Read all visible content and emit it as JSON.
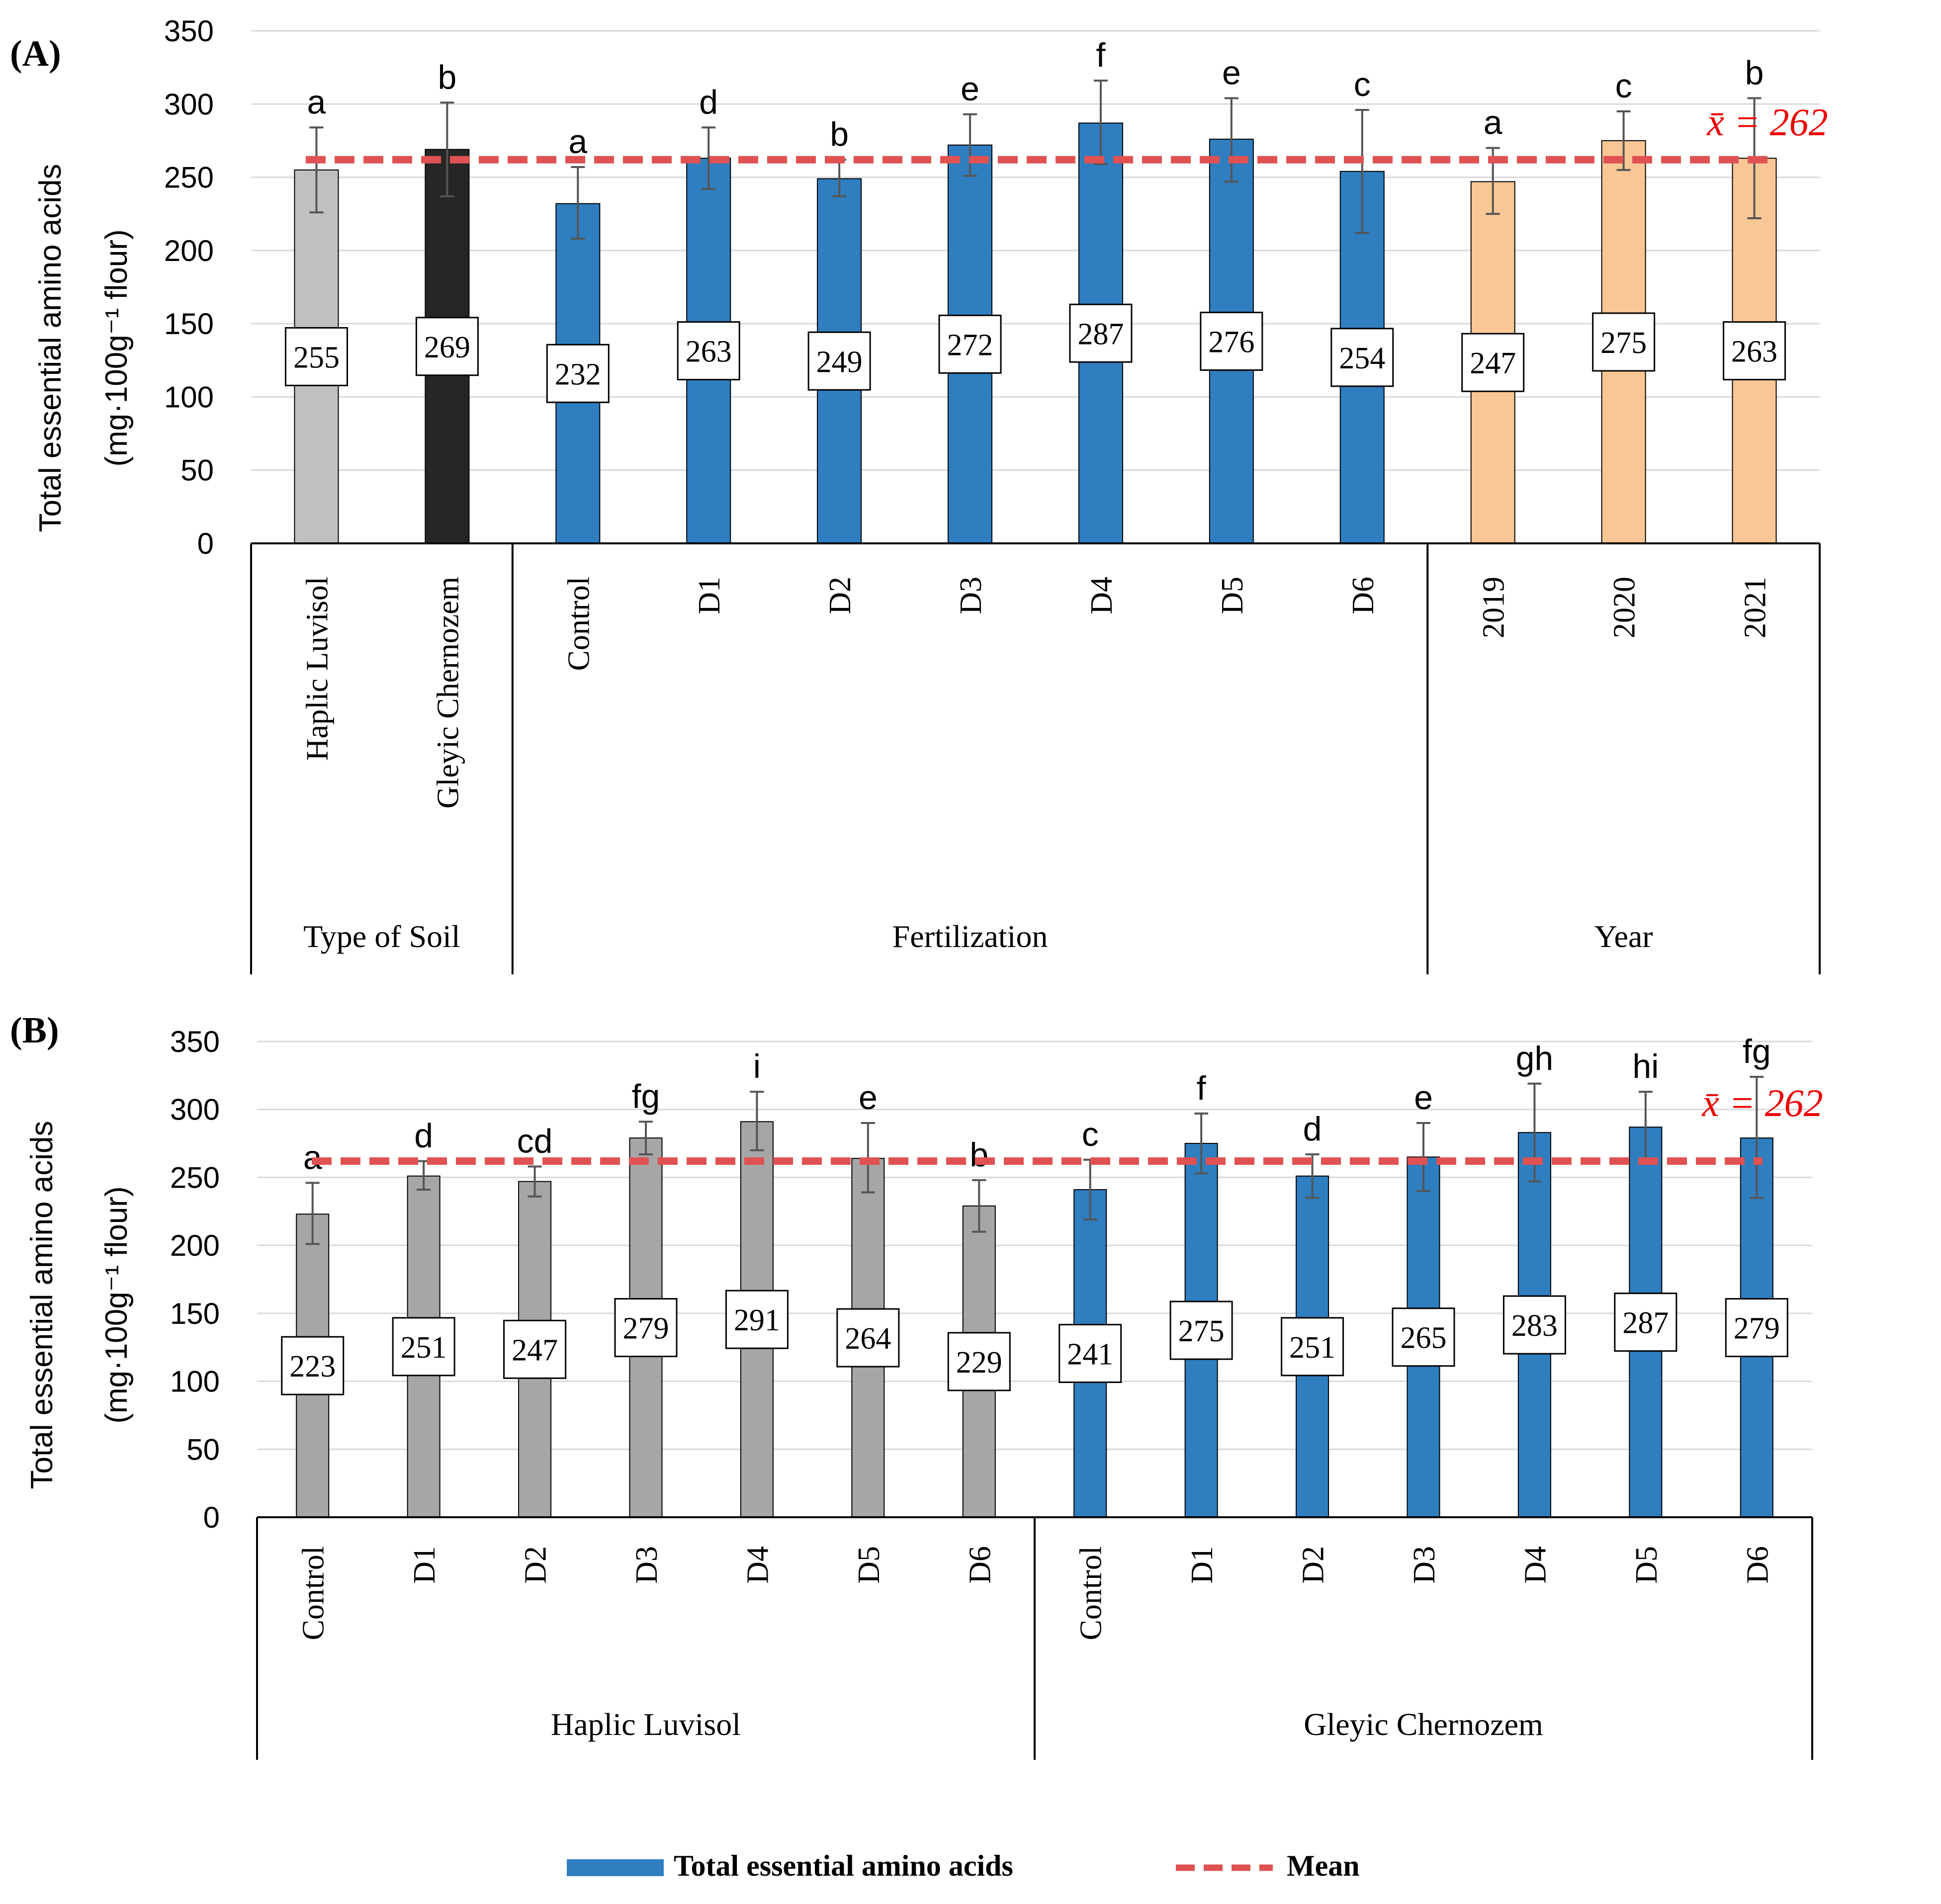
{
  "colors": {
    "grid": "#d9d9d9",
    "axis": "#000000",
    "error": "#555555",
    "mean": "#e05252",
    "mean_label": "#ee0000",
    "soil_luvisol": "#c0c0c0",
    "soil_chernozem": "#262626",
    "blue": "#2f7ec0",
    "orange": "#f9c795",
    "gray_b": "#a6a6a6"
  },
  "chart_data": [
    {
      "panel_label": "(A)",
      "type": "bar",
      "ylabel_line1": "Total essential amino acids",
      "ylabel_line2": "(mg·100g⁻¹ flour)",
      "ylim": [
        0,
        350
      ],
      "yticks": [
        "0",
        "50",
        "100",
        "150",
        "200",
        "250",
        "300",
        "350"
      ],
      "grid": true,
      "mean": 262,
      "mean_label": "x̄ = 262",
      "groups": [
        {
          "label": "Type of Soil",
          "count": 2
        },
        {
          "label": "Fertilization",
          "count": 7
        },
        {
          "label": "Year",
          "count": 3
        }
      ],
      "bars": [
        {
          "category": "Haplic Luvisol",
          "value": 255,
          "value_label": "255",
          "error_low": 226,
          "error_high": 284,
          "letter": "a",
          "color": "soil_luvisol"
        },
        {
          "category": "Gleyic Chernozem",
          "value": 269,
          "value_label": "269",
          "error_low": 237,
          "error_high": 301,
          "letter": "b",
          "color": "soil_chernozem"
        },
        {
          "category": "Control",
          "value": 232,
          "value_label": "232",
          "error_low": 208,
          "error_high": 257,
          "letter": "a",
          "color": "blue"
        },
        {
          "category": "D1",
          "value": 263,
          "value_label": "263",
          "error_low": 242,
          "error_high": 284,
          "letter": "d",
          "color": "blue"
        },
        {
          "category": "D2",
          "value": 249,
          "value_label": "249",
          "error_low": 237,
          "error_high": 262,
          "letter": "b",
          "color": "blue"
        },
        {
          "category": "D3",
          "value": 272,
          "value_label": "272",
          "error_low": 251,
          "error_high": 293,
          "letter": "e",
          "color": "blue"
        },
        {
          "category": "D4",
          "value": 287,
          "value_label": "287",
          "error_low": 259,
          "error_high": 316,
          "letter": "f",
          "color": "blue"
        },
        {
          "category": "D5",
          "value": 276,
          "value_label": "276",
          "error_low": 247,
          "error_high": 304,
          "letter": "e",
          "color": "blue"
        },
        {
          "category": "D6",
          "value": 254,
          "value_label": "254",
          "error_low": 212,
          "error_high": 296,
          "letter": "c",
          "color": "blue"
        },
        {
          "category": "2019",
          "value": 247,
          "value_label": "247",
          "error_low": 225,
          "error_high": 270,
          "letter": "a",
          "color": "orange"
        },
        {
          "category": "2020",
          "value": 275,
          "value_label": "275",
          "error_low": 255,
          "error_high": 295,
          "letter": "c",
          "color": "orange"
        },
        {
          "category": "2021",
          "value": 263,
          "value_label": "263",
          "error_low": 222,
          "error_high": 304,
          "letter": "b",
          "color": "orange"
        }
      ]
    },
    {
      "panel_label": "(B)",
      "type": "bar",
      "ylabel_line1": "Total essential amino acids",
      "ylabel_line2": "(mg·100g⁻¹ flour)",
      "ylim": [
        0,
        350
      ],
      "yticks": [
        "0",
        "50",
        "100",
        "150",
        "200",
        "250",
        "300",
        "350"
      ],
      "grid": true,
      "mean": 262,
      "mean_label": "x̄ = 262",
      "groups": [
        {
          "label": "Haplic Luvisol",
          "count": 7
        },
        {
          "label": "Gleyic Chernozem",
          "count": 7
        }
      ],
      "bars": [
        {
          "category": "Control",
          "value": 223,
          "value_label": "223",
          "error_low": 201,
          "error_high": 246,
          "letter": "a",
          "color": "gray_b"
        },
        {
          "category": "D1",
          "value": 251,
          "value_label": "251",
          "error_low": 241,
          "error_high": 262,
          "letter": "d",
          "color": "gray_b"
        },
        {
          "category": "D2",
          "value": 247,
          "value_label": "247",
          "error_low": 236,
          "error_high": 258,
          "letter": "cd",
          "color": "gray_b"
        },
        {
          "category": "D3",
          "value": 279,
          "value_label": "279",
          "error_low": 267,
          "error_high": 291,
          "letter": "fg",
          "color": "gray_b"
        },
        {
          "category": "D4",
          "value": 291,
          "value_label": "291",
          "error_low": 270,
          "error_high": 313,
          "letter": "i",
          "color": "gray_b"
        },
        {
          "category": "D5",
          "value": 264,
          "value_label": "264",
          "error_low": 239,
          "error_high": 290,
          "letter": "e",
          "color": "gray_b"
        },
        {
          "category": "D6",
          "value": 229,
          "value_label": "229",
          "error_low": 210,
          "error_high": 248,
          "letter": "b",
          "color": "gray_b"
        },
        {
          "category": "Control",
          "value": 241,
          "value_label": "241",
          "error_low": 219,
          "error_high": 263,
          "letter": "c",
          "color": "blue"
        },
        {
          "category": "D1",
          "value": 275,
          "value_label": "275",
          "error_low": 253,
          "error_high": 297,
          "letter": "f",
          "color": "blue"
        },
        {
          "category": "D2",
          "value": 251,
          "value_label": "251",
          "error_low": 235,
          "error_high": 267,
          "letter": "d",
          "color": "blue"
        },
        {
          "category": "D3",
          "value": 265,
          "value_label": "265",
          "error_low": 240,
          "error_high": 290,
          "letter": "e",
          "color": "blue"
        },
        {
          "category": "D4",
          "value": 283,
          "value_label": "283",
          "error_low": 247,
          "error_high": 319,
          "letter": "gh",
          "color": "blue"
        },
        {
          "category": "D5",
          "value": 287,
          "value_label": "287",
          "error_low": 262,
          "error_high": 313,
          "letter": "hi",
          "color": "blue"
        },
        {
          "category": "D6",
          "value": 279,
          "value_label": "279",
          "error_low": 235,
          "error_high": 324,
          "letter": "fg",
          "color": "blue"
        }
      ]
    }
  ],
  "legend": {
    "series_label": "Total essential amino acids",
    "mean_label": "Mean"
  }
}
